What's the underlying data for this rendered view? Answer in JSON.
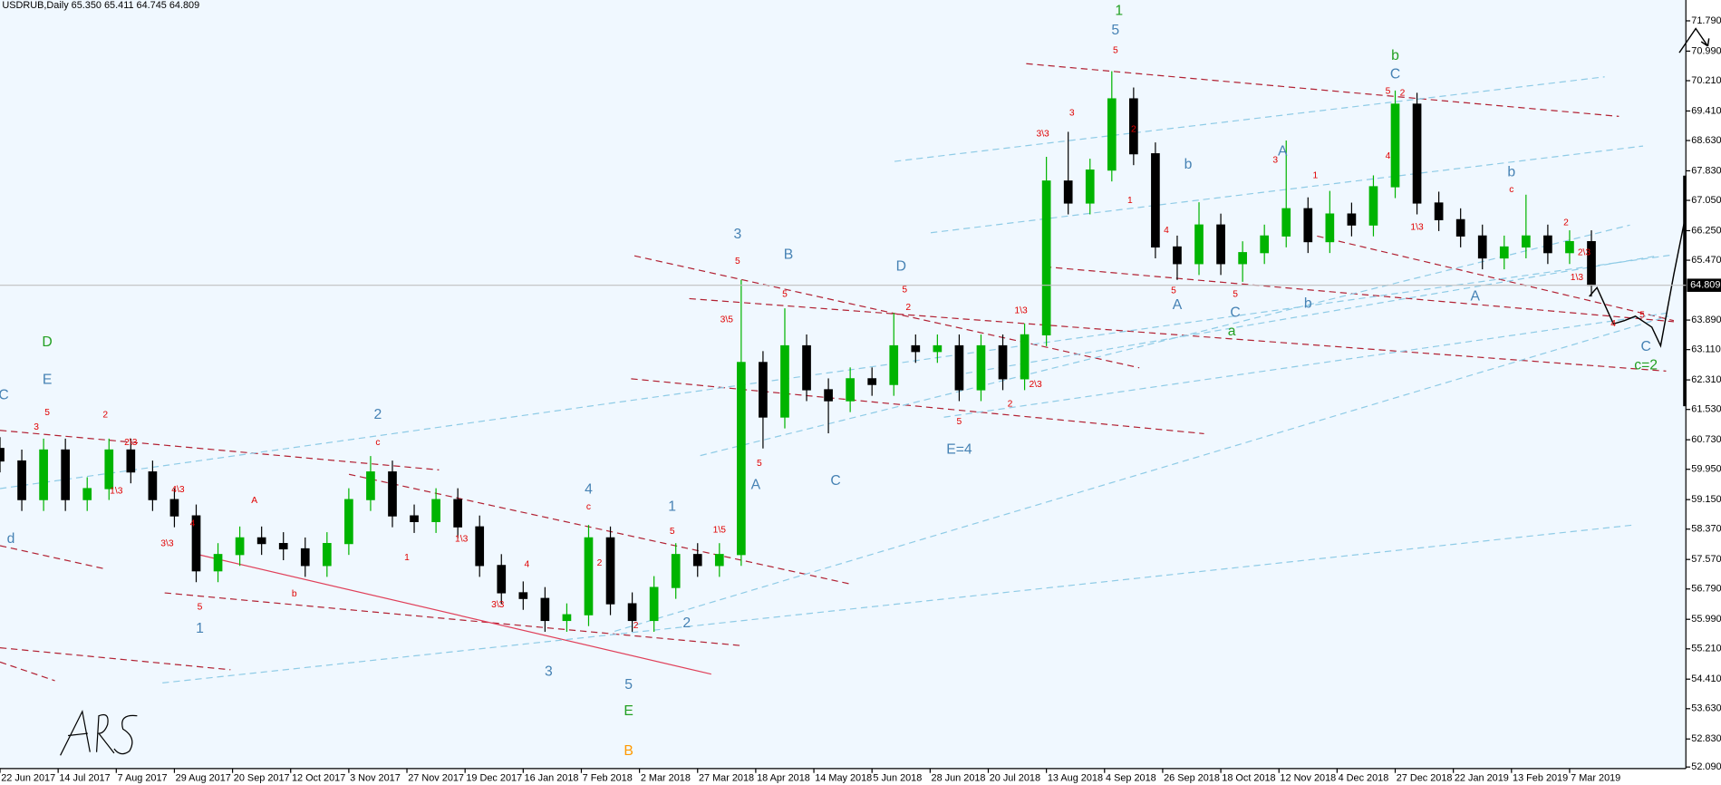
{
  "chart_data": {
    "type": "candlestick",
    "title": "USDRUB,Daily  65.350 65.411 64.745 64.809",
    "up_color": "#00b400",
    "down_color": "#000000",
    "x": [
      0,
      6,
      12,
      18,
      24,
      30,
      36,
      42,
      48,
      54,
      60,
      66,
      72,
      78,
      84,
      90,
      96,
      102,
      108,
      114,
      120,
      126,
      132,
      138,
      144,
      150,
      156,
      162,
      168,
      174,
      180,
      186,
      192,
      198,
      204,
      210,
      216,
      222,
      228,
      234,
      240,
      246,
      252,
      258,
      264,
      270,
      276,
      282,
      288,
      294,
      300,
      306,
      312,
      318,
      324,
      330,
      336,
      342,
      348,
      354,
      360,
      366,
      372,
      378,
      384,
      390,
      396,
      402,
      408,
      414,
      420,
      426,
      432,
      438
    ],
    "open": [
      60.5,
      60.17,
      59.15,
      60.46,
      59.15,
      59.44,
      60.46,
      59.88,
      59.15,
      58.72,
      57.27,
      57.7,
      58.14,
      57.99,
      57.85,
      57.41,
      57.99,
      59.15,
      59.88,
      58.72,
      58.57,
      59.15,
      58.43,
      57.41,
      56.69,
      56.54,
      55.96,
      56.11,
      58.14,
      56.4,
      55.96,
      56.83,
      57.7,
      57.41,
      57.7,
      62.77,
      61.33,
      63.21,
      62.05,
      61.76,
      62.34,
      62.19,
      63.21,
      63.06,
      63.21,
      62.05,
      63.21,
      62.34,
      63.5,
      67.56,
      66.98,
      67.85,
      69.73,
      68.28,
      65.82,
      65.38,
      66.4,
      65.38,
      65.67,
      66.11,
      66.83,
      65.96,
      66.69,
      66.4,
      67.41,
      69.59,
      66.98,
      66.54,
      66.11,
      65.53,
      65.82,
      66.11,
      65.67,
      65.96
    ],
    "high": [
      60.8,
      60.47,
      60.76,
      60.76,
      59.74,
      60.76,
      60.76,
      60.18,
      59.45,
      59.02,
      58.0,
      58.44,
      58.44,
      58.29,
      58.15,
      58.29,
      59.45,
      60.3,
      60.18,
      59.02,
      59.45,
      59.45,
      58.73,
      57.71,
      56.99,
      56.84,
      56.41,
      58.48,
      58.44,
      56.7,
      57.13,
      58.0,
      58.0,
      58.0,
      64.95,
      63.07,
      64.2,
      63.51,
      62.35,
      62.64,
      62.64,
      64.08,
      63.51,
      63.51,
      63.51,
      63.51,
      63.51,
      63.8,
      68.2,
      68.86,
      68.15,
      70.46,
      70.03,
      68.58,
      66.12,
      67.0,
      66.7,
      65.97,
      66.41,
      68.63,
      67.13,
      67.3,
      66.99,
      67.71,
      69.95,
      69.89,
      67.28,
      66.84,
      66.41,
      66.12,
      67.2,
      66.41,
      66.26,
      66.26
    ],
    "low": [
      59.87,
      58.85,
      58.85,
      58.85,
      58.85,
      59.14,
      59.58,
      58.85,
      58.42,
      56.97,
      56.97,
      57.4,
      57.69,
      57.55,
      57.11,
      57.11,
      57.69,
      58.85,
      58.42,
      58.27,
      58.27,
      58.13,
      57.11,
      56.39,
      56.24,
      55.66,
      55.66,
      55.81,
      56.1,
      55.66,
      55.66,
      56.53,
      57.11,
      57.11,
      57.4,
      60.5,
      61.03,
      61.75,
      60.9,
      61.46,
      61.89,
      61.89,
      62.76,
      62.76,
      61.75,
      61.75,
      62.04,
      62.04,
      63.2,
      66.68,
      66.68,
      67.55,
      67.98,
      65.52,
      64.95,
      65.08,
      65.08,
      64.9,
      65.37,
      65.81,
      65.66,
      65.66,
      66.1,
      66.1,
      67.11,
      66.68,
      66.24,
      65.81,
      65.23,
      65.23,
      65.52,
      65.37,
      65.37,
      64.51
    ],
    "close": [
      60.17,
      59.15,
      60.46,
      59.15,
      59.44,
      60.46,
      59.88,
      59.15,
      58.72,
      57.27,
      57.7,
      58.14,
      57.99,
      57.85,
      57.41,
      57.99,
      59.15,
      59.88,
      58.72,
      58.57,
      59.15,
      58.43,
      57.41,
      56.69,
      56.54,
      55.96,
      56.11,
      58.14,
      56.4,
      55.96,
      56.83,
      57.7,
      57.41,
      57.7,
      62.77,
      61.33,
      63.21,
      62.05,
      61.76,
      62.34,
      62.19,
      63.21,
      63.06,
      63.21,
      62.05,
      63.21,
      62.34,
      63.5,
      67.56,
      66.98,
      67.85,
      69.73,
      68.28,
      65.82,
      65.38,
      66.4,
      65.38,
      65.67,
      66.11,
      66.83,
      65.96,
      66.69,
      66.4,
      67.41,
      69.59,
      66.98,
      66.54,
      66.11,
      65.53,
      65.82,
      66.11,
      65.67,
      65.96,
      64.81
    ],
    "xlim": [
      0,
      464
    ],
    "xticks": [
      {
        "value": 0,
        "label": "22 Jun 2017"
      },
      {
        "value": 16,
        "label": "14 Jul 2017"
      },
      {
        "value": 32,
        "label": "7 Aug 2017"
      },
      {
        "value": 48,
        "label": "29 Aug 2017"
      },
      {
        "value": 64,
        "label": "20 Sep 2017"
      },
      {
        "value": 80,
        "label": "12 Oct 2017"
      },
      {
        "value": 96,
        "label": "3 Nov 2017"
      },
      {
        "value": 112,
        "label": "27 Nov 2017"
      },
      {
        "value": 128,
        "label": "19 Dec 2017"
      },
      {
        "value": 144,
        "label": "16 Jan 2018"
      },
      {
        "value": 160,
        "label": "7 Feb 2018"
      },
      {
        "value": 176,
        "label": "2 Mar 2018"
      },
      {
        "value": 192,
        "label": "27 Mar 2018"
      },
      {
        "value": 208,
        "label": "18 Apr 2018"
      },
      {
        "value": 224,
        "label": "14 May 2018"
      },
      {
        "value": 240,
        "label": "5 Jun 2018"
      },
      {
        "value": 256,
        "label": "28 Jun 2018"
      },
      {
        "value": 272,
        "label": "20 Jul 2018"
      },
      {
        "value": 288,
        "label": "13 Aug 2018"
      },
      {
        "value": 304,
        "label": "4 Sep 2018"
      },
      {
        "value": 320,
        "label": "26 Sep 2018"
      },
      {
        "value": 336,
        "label": "18 Oct 2018"
      },
      {
        "value": 352,
        "label": "12 Nov 2018"
      },
      {
        "value": 368,
        "label": "4 Dec 2018"
      },
      {
        "value": 384,
        "label": "27 Dec 2018"
      },
      {
        "value": 400,
        "label": "22 Jan 2019"
      },
      {
        "value": 416,
        "label": "13 Feb 2019"
      },
      {
        "value": 432,
        "label": "7 Mar 2019"
      }
    ],
    "ylim": [
      52.05,
      72.34
    ],
    "yticks": [
      {
        "value": 71.79,
        "label": "71.790"
      },
      {
        "value": 70.99,
        "label": "70.990"
      },
      {
        "value": 70.21,
        "label": "70.210"
      },
      {
        "value": 69.41,
        "label": "69.410"
      },
      {
        "value": 68.63,
        "label": "68.630"
      },
      {
        "value": 67.83,
        "label": "67.830"
      },
      {
        "value": 67.05,
        "label": "67.050"
      },
      {
        "value": 66.25,
        "label": "66.250"
      },
      {
        "value": 65.47,
        "label": "65.470"
      },
      {
        "value": 63.89,
        "label": "63.890"
      },
      {
        "value": 63.11,
        "label": "63.110"
      },
      {
        "value": 62.31,
        "label": "62.310"
      },
      {
        "value": 61.53,
        "label": "61.530"
      },
      {
        "value": 60.73,
        "label": "60.730"
      },
      {
        "value": 59.95,
        "label": "59.950"
      },
      {
        "value": 59.15,
        "label": "59.150"
      },
      {
        "value": 58.37,
        "label": "58.370"
      },
      {
        "value": 57.57,
        "label": "57.570"
      },
      {
        "value": 56.79,
        "label": "56.790"
      },
      {
        "value": 55.99,
        "label": "55.990"
      },
      {
        "value": 55.21,
        "label": "55.210"
      },
      {
        "value": 54.41,
        "label": "54.410"
      },
      {
        "value": 53.63,
        "label": "53.630"
      },
      {
        "value": 52.83,
        "label": "52.830"
      },
      {
        "value": 52.09,
        "label": "52.090"
      }
    ],
    "last_price": 64.809,
    "annotations": [
      {
        "text": "1",
        "x": 308,
        "y": 72.05,
        "color": "#22a022"
      },
      {
        "text": "5",
        "x": 307,
        "y": 71.53,
        "color": "#4682b4"
      },
      {
        "text": "b",
        "x": 384,
        "y": 70.86,
        "color": "#22a022"
      },
      {
        "text": "C",
        "x": 384,
        "y": 70.37,
        "color": "#4682b4"
      },
      {
        "text": "D",
        "x": 13,
        "y": 63.3,
        "color": "#22a022"
      },
      {
        "text": "E",
        "x": 13,
        "y": 62.31,
        "color": "#4682b4"
      },
      {
        "text": "C",
        "x": 1,
        "y": 61.9,
        "color": "#4682b4"
      },
      {
        "text": "d",
        "x": 3,
        "y": 58.11,
        "color": "#4682b4"
      },
      {
        "text": "2",
        "x": 104,
        "y": 61.38,
        "color": "#4682b4"
      },
      {
        "text": "1",
        "x": 55,
        "y": 55.73,
        "color": "#4682b4"
      },
      {
        "text": "3",
        "x": 151,
        "y": 54.6,
        "color": "#4682b4"
      },
      {
        "text": "4",
        "x": 162,
        "y": 59.41,
        "color": "#4682b4"
      },
      {
        "text": "1",
        "x": 185,
        "y": 58.95,
        "color": "#4682b4"
      },
      {
        "text": "2",
        "x": 189,
        "y": 55.88,
        "color": "#4682b4"
      },
      {
        "text": "5",
        "x": 173,
        "y": 54.25,
        "color": "#4682b4"
      },
      {
        "text": "E",
        "x": 173,
        "y": 53.56,
        "color": "#22a022"
      },
      {
        "text": "B",
        "x": 173,
        "y": 52.51,
        "color": "#ff9900"
      },
      {
        "text": "3",
        "x": 203,
        "y": 66.14,
        "color": "#4682b4"
      },
      {
        "text": "B",
        "x": 217,
        "y": 65.61,
        "color": "#4682b4"
      },
      {
        "text": "A",
        "x": 208,
        "y": 59.53,
        "color": "#4682b4"
      },
      {
        "text": "C",
        "x": 230,
        "y": 59.64,
        "color": "#4682b4"
      },
      {
        "text": "D",
        "x": 248,
        "y": 65.3,
        "color": "#4682b4"
      },
      {
        "text": "E=4",
        "x": 264,
        "y": 60.46,
        "color": "#4682b4"
      },
      {
        "text": "A",
        "x": 353,
        "y": 68.34,
        "color": "#4682b4"
      },
      {
        "text": "b",
        "x": 327,
        "y": 67.99,
        "color": "#4682b4"
      },
      {
        "text": "A",
        "x": 324,
        "y": 64.28,
        "color": "#4682b4"
      },
      {
        "text": "C",
        "x": 340,
        "y": 64.08,
        "color": "#4682b4"
      },
      {
        "text": "a",
        "x": 339,
        "y": 63.59,
        "color": "#22a022"
      },
      {
        "text": "b",
        "x": 360,
        "y": 64.31,
        "color": "#4682b4"
      },
      {
        "text": "b",
        "x": 416,
        "y": 67.79,
        "color": "#4682b4"
      },
      {
        "text": "A",
        "x": 406,
        "y": 64.51,
        "color": "#4682b4"
      },
      {
        "text": "C",
        "x": 453,
        "y": 63.18,
        "color": "#4682b4"
      },
      {
        "text": "c=2",
        "x": 453,
        "y": 62.69,
        "color": "#22a022"
      }
    ],
    "minor_annotation_color": "#e00000",
    "minor_annotations": [
      {
        "text": "5",
        "x": 307,
        "y": 71.01
      },
      {
        "text": "5",
        "x": 13,
        "y": 61.44
      },
      {
        "text": "3",
        "x": 10,
        "y": 61.06
      },
      {
        "text": "2",
        "x": 29,
        "y": 61.38
      },
      {
        "text": "2\\3",
        "x": 36,
        "y": 60.66
      },
      {
        "text": "1\\3",
        "x": 32,
        "y": 59.38
      },
      {
        "text": "4\\3",
        "x": 49,
        "y": 59.41
      },
      {
        "text": "3\\3",
        "x": 46,
        "y": 57.99
      },
      {
        "text": "4",
        "x": 53,
        "y": 58.51
      },
      {
        "text": "5",
        "x": 55,
        "y": 56.31
      },
      {
        "text": "A",
        "x": 70,
        "y": 59.12
      },
      {
        "text": "c",
        "x": 104,
        "y": 60.66
      },
      {
        "text": "1\\3",
        "x": 127,
        "y": 58.11
      },
      {
        "text": "1",
        "x": 112,
        "y": 57.61
      },
      {
        "text": "b",
        "x": 81,
        "y": 56.66
      },
      {
        "text": "3\\3",
        "x": 137,
        "y": 56.37
      },
      {
        "text": "4",
        "x": 145,
        "y": 57.44
      },
      {
        "text": "c",
        "x": 162,
        "y": 58.95
      },
      {
        "text": "2",
        "x": 165,
        "y": 57.47
      },
      {
        "text": "2",
        "x": 175,
        "y": 55.82
      },
      {
        "text": "5",
        "x": 185,
        "y": 58.31
      },
      {
        "text": "1\\5",
        "x": 198,
        "y": 58.34
      },
      {
        "text": "3\\5",
        "x": 200,
        "y": 63.9
      },
      {
        "text": "5",
        "x": 203,
        "y": 65.44
      },
      {
        "text": "5",
        "x": 209,
        "y": 60.11
      },
      {
        "text": "5",
        "x": 216,
        "y": 64.57
      },
      {
        "text": "5",
        "x": 249,
        "y": 64.69
      },
      {
        "text": "2",
        "x": 250,
        "y": 64.22
      },
      {
        "text": "5",
        "x": 264,
        "y": 61.21
      },
      {
        "text": "2",
        "x": 278,
        "y": 61.67
      },
      {
        "text": "1\\3",
        "x": 281,
        "y": 64.14
      },
      {
        "text": "2\\3",
        "x": 285,
        "y": 62.19
      },
      {
        "text": "3\\3",
        "x": 287,
        "y": 68.8
      },
      {
        "text": "3",
        "x": 295,
        "y": 69.35
      },
      {
        "text": "2",
        "x": 312,
        "y": 68.92
      },
      {
        "text": "1",
        "x": 311,
        "y": 67.04
      },
      {
        "text": "4",
        "x": 321,
        "y": 66.25
      },
      {
        "text": "5",
        "x": 323,
        "y": 64.66
      },
      {
        "text": "5",
        "x": 340,
        "y": 64.57
      },
      {
        "text": "3",
        "x": 351,
        "y": 68.11
      },
      {
        "text": "1",
        "x": 362,
        "y": 67.7
      },
      {
        "text": "5",
        "x": 382,
        "y": 69.93
      },
      {
        "text": "2",
        "x": 386,
        "y": 69.88
      },
      {
        "text": "4",
        "x": 382,
        "y": 68.22
      },
      {
        "text": "1\\3",
        "x": 390,
        "y": 66.34
      },
      {
        "text": "c",
        "x": 416,
        "y": 67.33
      },
      {
        "text": "2",
        "x": 431,
        "y": 66.46
      },
      {
        "text": "2\\3",
        "x": 436,
        "y": 65.67
      },
      {
        "text": "1\\3",
        "x": 434,
        "y": 65.01
      },
      {
        "text": "4",
        "x": 444,
        "y": 63.79
      },
      {
        "text": "5",
        "x": 452,
        "y": 64.02
      }
    ]
  }
}
